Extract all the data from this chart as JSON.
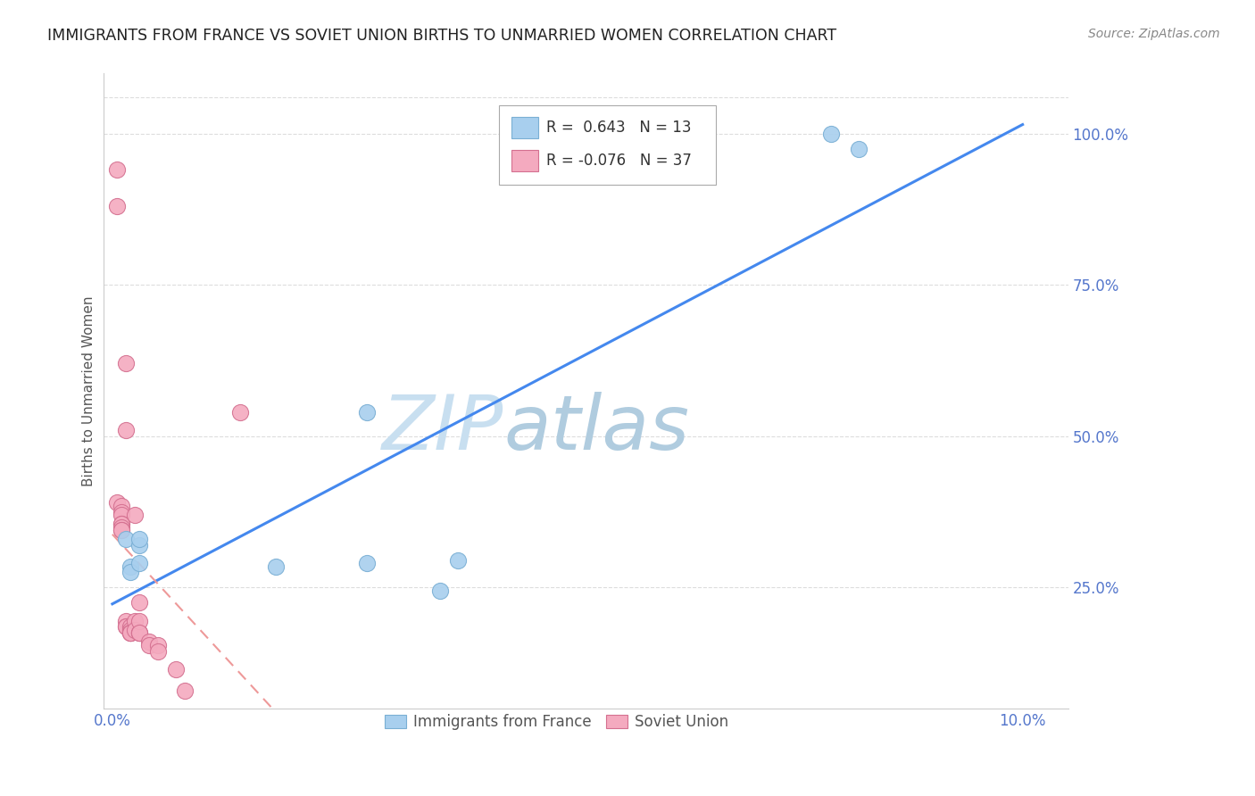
{
  "title": "IMMIGRANTS FROM FRANCE VS SOVIET UNION BIRTHS TO UNMARRIED WOMEN CORRELATION CHART",
  "source": "Source: ZipAtlas.com",
  "ylabel": "Births to Unmarried Women",
  "x_tick_positions": [
    0.0,
    0.02,
    0.04,
    0.06,
    0.08,
    0.1
  ],
  "x_tick_labels": [
    "0.0%",
    "",
    "",
    "",
    "",
    "10.0%"
  ],
  "y_tick_positions": [
    0.25,
    0.5,
    0.75,
    1.0
  ],
  "y_tick_labels": [
    "25.0%",
    "50.0%",
    "75.0%",
    "100.0%"
  ],
  "legend_label1": "Immigrants from France",
  "legend_label2": "Soviet Union",
  "r1": 0.643,
  "n1": 13,
  "r2": -0.076,
  "n2": 37,
  "france_color": "#A8CFEE",
  "france_edge": "#7AAFD4",
  "soviet_color": "#F4AABF",
  "soviet_edge": "#D47090",
  "trendline1_color": "#4488EE",
  "trendline2_color": "#EE9999",
  "watermark_zip_color": "#D0E8F8",
  "watermark_atlas_color": "#B8D4E8",
  "title_color": "#222222",
  "axis_color": "#5577CC",
  "grid_color": "#DDDDDD",
  "xlim": [
    -0.001,
    0.105
  ],
  "ylim": [
    0.05,
    1.1
  ],
  "france_x": [
    0.0015,
    0.002,
    0.002,
    0.003,
    0.003,
    0.003,
    0.028,
    0.018,
    0.028,
    0.038,
    0.036,
    0.079,
    0.082
  ],
  "france_y": [
    0.33,
    0.285,
    0.275,
    0.32,
    0.29,
    0.33,
    0.54,
    0.285,
    0.29,
    0.295,
    0.245,
    1.0,
    0.975
  ],
  "soviet_x": [
    0.0005,
    0.0005,
    0.0005,
    0.001,
    0.001,
    0.001,
    0.001,
    0.001,
    0.001,
    0.001,
    0.001,
    0.0015,
    0.0015,
    0.0015,
    0.0015,
    0.0015,
    0.002,
    0.002,
    0.002,
    0.002,
    0.002,
    0.002,
    0.0025,
    0.0025,
    0.0025,
    0.003,
    0.003,
    0.003,
    0.003,
    0.003,
    0.004,
    0.004,
    0.005,
    0.005,
    0.007,
    0.008,
    0.014
  ],
  "soviet_y": [
    0.94,
    0.88,
    0.39,
    0.385,
    0.375,
    0.37,
    0.355,
    0.355,
    0.35,
    0.345,
    0.345,
    0.62,
    0.51,
    0.195,
    0.185,
    0.185,
    0.185,
    0.18,
    0.175,
    0.175,
    0.175,
    0.175,
    0.37,
    0.195,
    0.18,
    0.175,
    0.175,
    0.225,
    0.195,
    0.175,
    0.16,
    0.155,
    0.155,
    0.145,
    0.115,
    0.08,
    0.54
  ],
  "trendline1_x": [
    0.0,
    0.1
  ],
  "trendline2_x": [
    0.0,
    0.055
  ]
}
